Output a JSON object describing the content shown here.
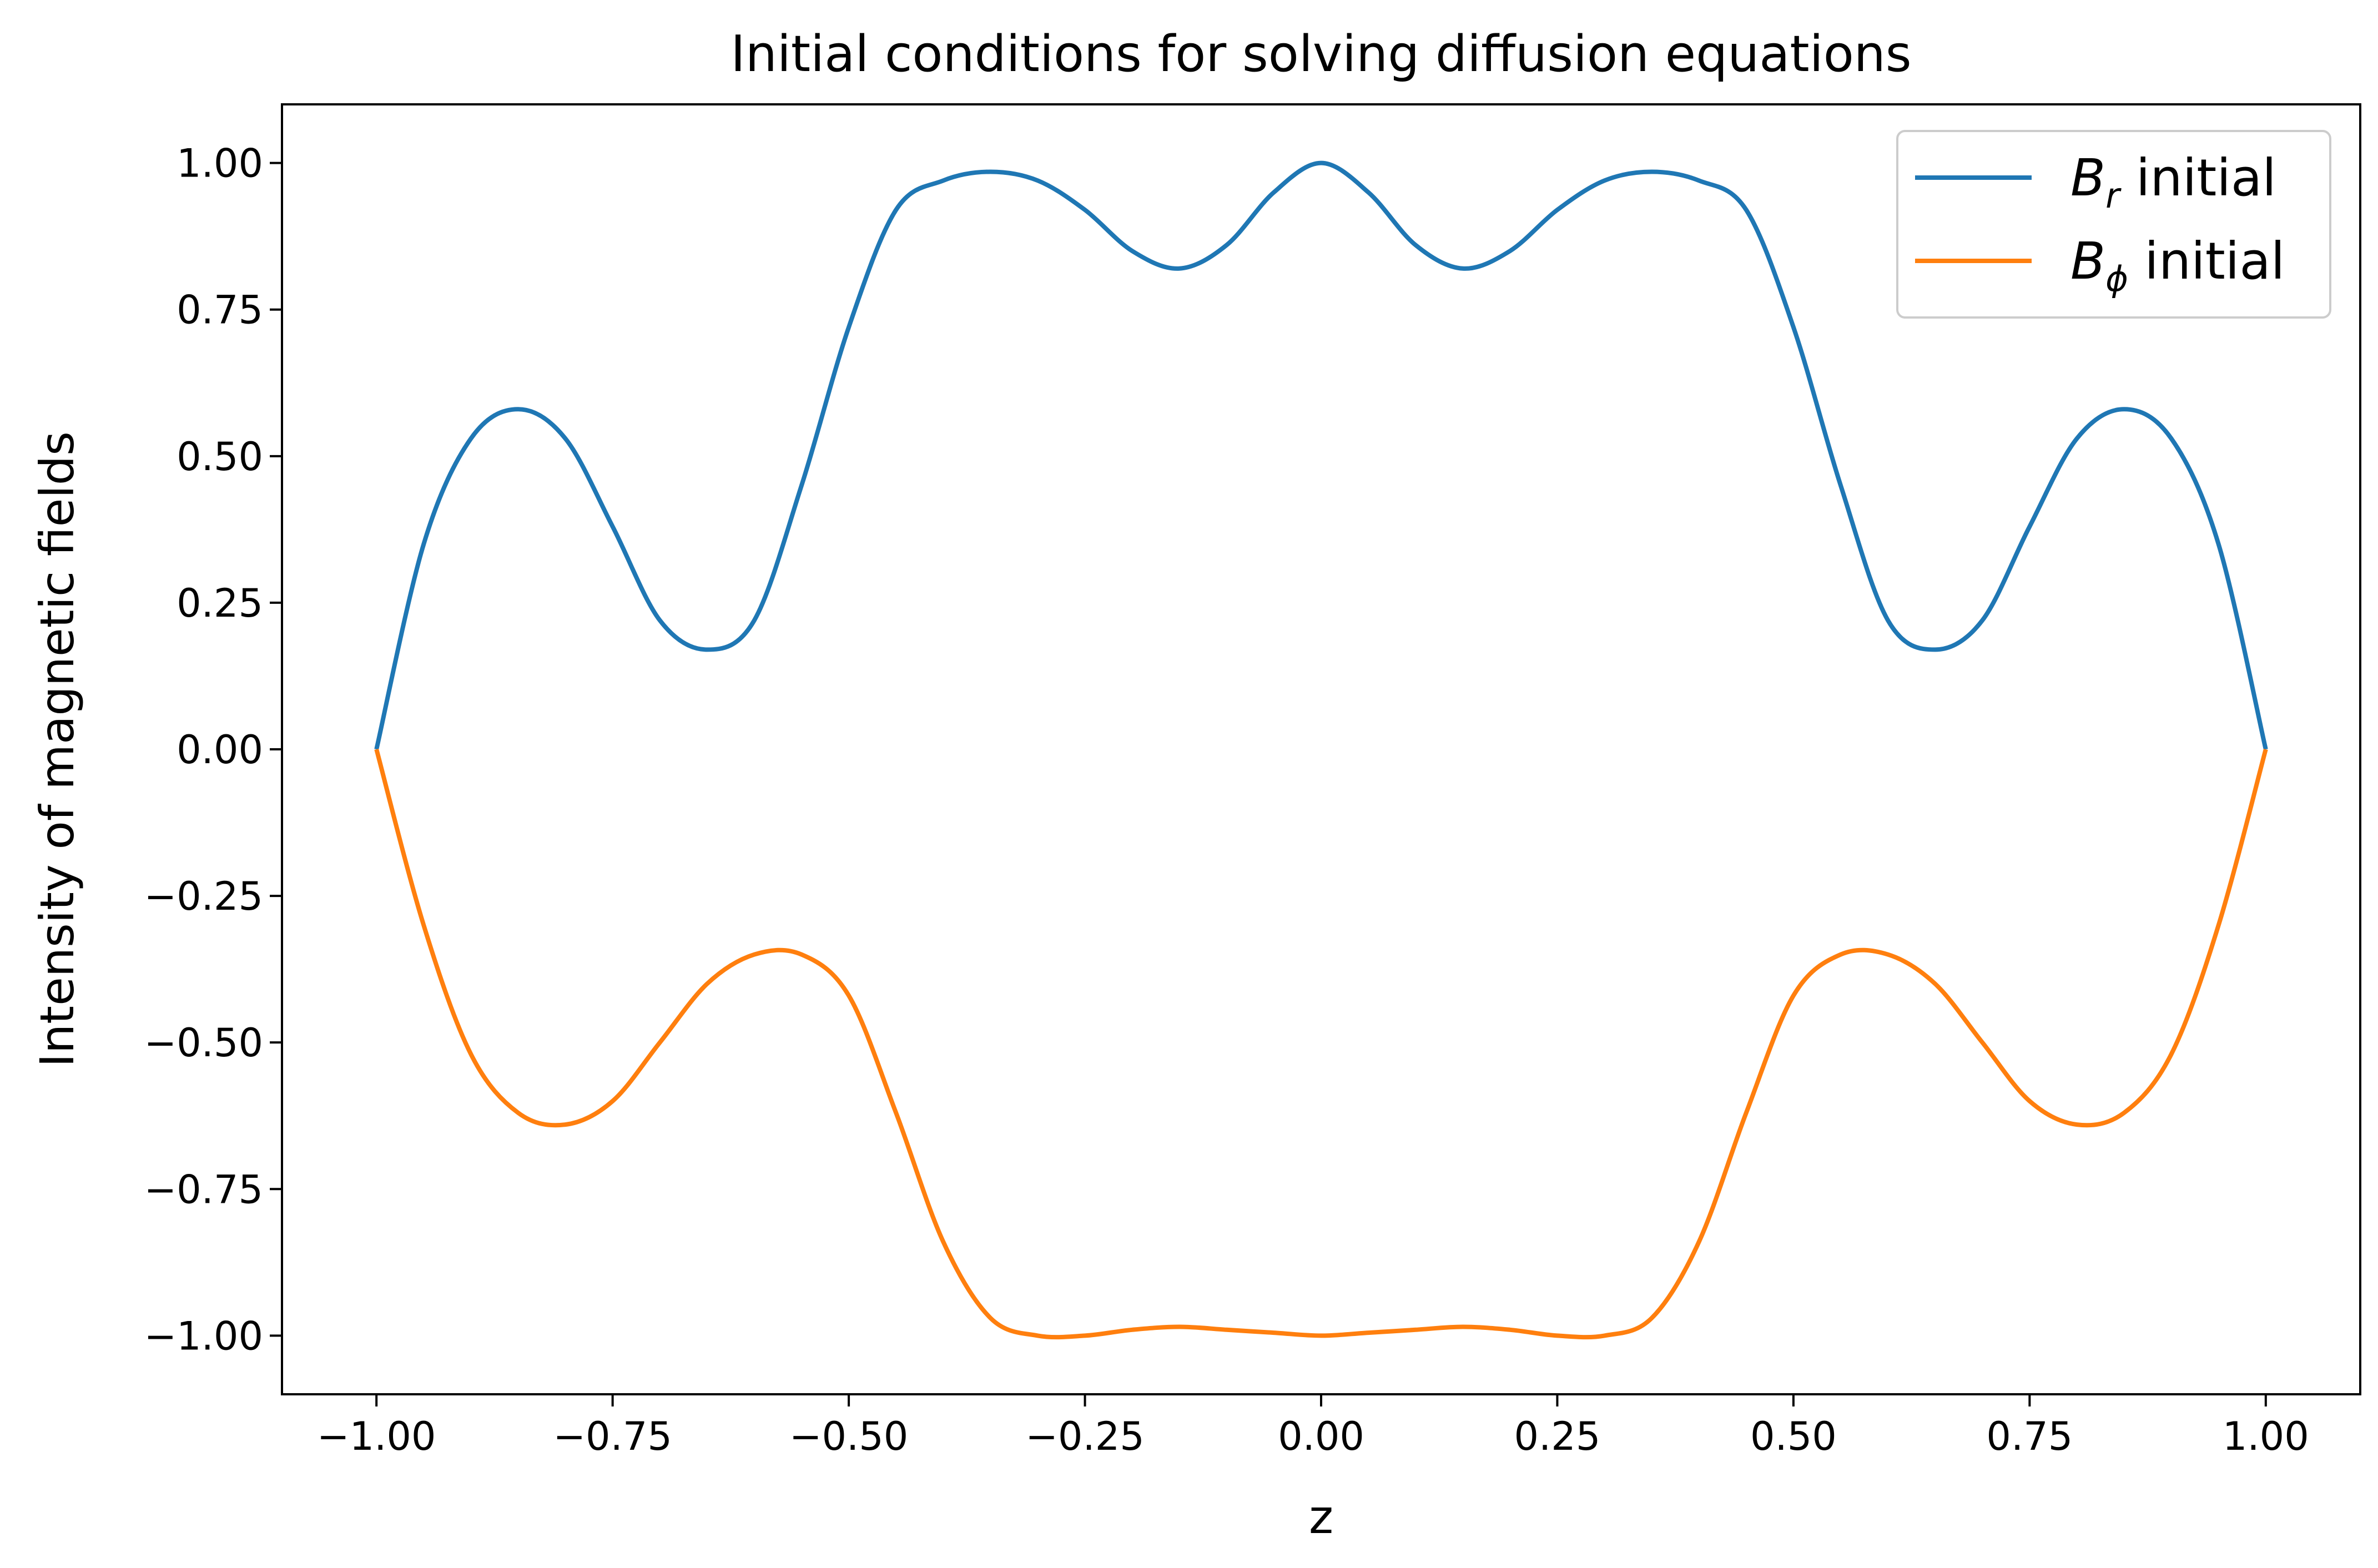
{
  "chart_data": {
    "type": "line",
    "title": "Initial conditions for solving diffusion equations",
    "xlabel": "z",
    "ylabel": "Intensity of magnetic fields",
    "xlim": [
      -1.1,
      1.1
    ],
    "ylim": [
      -1.1,
      1.1
    ],
    "x_ticks": [
      "−1.00",
      "−0.75",
      "−0.50",
      "−0.25",
      "0.00",
      "0.25",
      "0.50",
      "0.75",
      "1.00"
    ],
    "y_ticks": [
      "1.00",
      "0.75",
      "0.50",
      "0.25",
      "0.00",
      "−0.25",
      "−0.50",
      "−0.75",
      "−1.00"
    ],
    "grid": false,
    "legend_position": "top-right",
    "series": [
      {
        "name": "B_r initial",
        "legend_main": "B",
        "legend_sub": "r",
        "legend_suffix": " initial",
        "color": "#1f77b4",
        "x": [
          -1.0,
          -0.95,
          -0.9,
          -0.85,
          -0.8,
          -0.75,
          -0.7,
          -0.65,
          -0.6,
          -0.55,
          -0.5,
          -0.45,
          -0.4,
          -0.35,
          -0.3,
          -0.25,
          -0.2,
          -0.15,
          -0.1,
          -0.05,
          0.0,
          0.05,
          0.1,
          0.15,
          0.2,
          0.25,
          0.3,
          0.35,
          0.4,
          0.45,
          0.5,
          0.55,
          0.6,
          0.65,
          0.7,
          0.75,
          0.8,
          0.85,
          0.9,
          0.95,
          1.0
        ],
        "y": [
          0.0,
          0.35,
          0.53,
          0.58,
          0.53,
          0.38,
          0.22,
          0.17,
          0.22,
          0.45,
          0.72,
          0.92,
          0.97,
          0.985,
          0.97,
          0.92,
          0.85,
          0.82,
          0.86,
          0.95,
          1.0,
          0.95,
          0.86,
          0.82,
          0.85,
          0.92,
          0.97,
          0.985,
          0.97,
          0.92,
          0.72,
          0.45,
          0.22,
          0.17,
          0.22,
          0.38,
          0.53,
          0.58,
          0.53,
          0.35,
          0.0
        ]
      },
      {
        "name": "B_phi initial",
        "legend_main": "B",
        "legend_sub": "ϕ",
        "legend_suffix": " initial",
        "color": "#ff7f0e",
        "x": [
          -1.0,
          -0.95,
          -0.9,
          -0.85,
          -0.8,
          -0.75,
          -0.7,
          -0.65,
          -0.6,
          -0.55,
          -0.5,
          -0.45,
          -0.4,
          -0.35,
          -0.3,
          -0.25,
          -0.2,
          -0.15,
          -0.1,
          -0.05,
          0.0,
          0.05,
          0.1,
          0.15,
          0.2,
          0.25,
          0.3,
          0.35,
          0.4,
          0.45,
          0.5,
          0.55,
          0.6,
          0.65,
          0.7,
          0.75,
          0.8,
          0.85,
          0.9,
          0.95,
          1.0
        ],
        "y": [
          0.0,
          -0.3,
          -0.52,
          -0.62,
          -0.64,
          -0.6,
          -0.5,
          -0.4,
          -0.35,
          -0.35,
          -0.42,
          -0.62,
          -0.84,
          -0.97,
          -1.0,
          -1.0,
          -0.99,
          -0.985,
          -0.99,
          -0.995,
          -1.0,
          -0.995,
          -0.99,
          -0.985,
          -0.99,
          -1.0,
          -1.0,
          -0.97,
          -0.84,
          -0.62,
          -0.42,
          -0.35,
          -0.35,
          -0.4,
          -0.5,
          -0.6,
          -0.64,
          -0.62,
          -0.52,
          -0.3,
          0.0
        ]
      }
    ]
  }
}
